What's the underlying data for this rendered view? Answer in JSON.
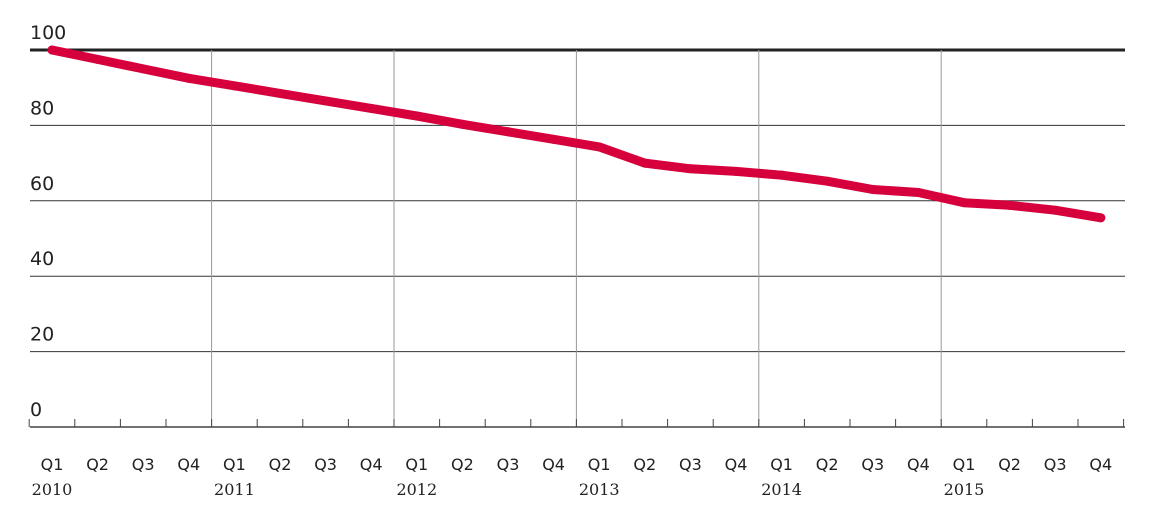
{
  "chart_data": {
    "type": "line",
    "title": "",
    "xlabel": "",
    "ylabel": "",
    "ylim": [
      0,
      100
    ],
    "yticks": [
      "0",
      "20",
      "40",
      "60",
      "80",
      "100"
    ],
    "quarter_labels": [
      "Q1",
      "Q2",
      "Q3",
      "Q4",
      "Q1",
      "Q2",
      "Q3",
      "Q4",
      "Q1",
      "Q2",
      "Q3",
      "Q4",
      "Q1",
      "Q2",
      "Q3",
      "Q4",
      "Q1",
      "Q2",
      "Q3",
      "Q4",
      "Q1",
      "Q2",
      "Q3",
      "Q4"
    ],
    "year_labels": [
      "2010",
      "2011",
      "2012",
      "2013",
      "2014",
      "2015"
    ],
    "grid": true,
    "legend": "none",
    "series": [
      {
        "color": "#d6003c",
        "values": [
          100,
          97.5,
          95,
          92.5,
          90.5,
          88.5,
          86.5,
          84.5,
          82.5,
          80.3,
          78.3,
          76.3,
          74.3,
          70,
          68.5,
          67.8,
          66.8,
          65.2,
          63,
          62.2,
          59.5,
          58.8,
          57.5,
          55.5
        ]
      }
    ]
  }
}
